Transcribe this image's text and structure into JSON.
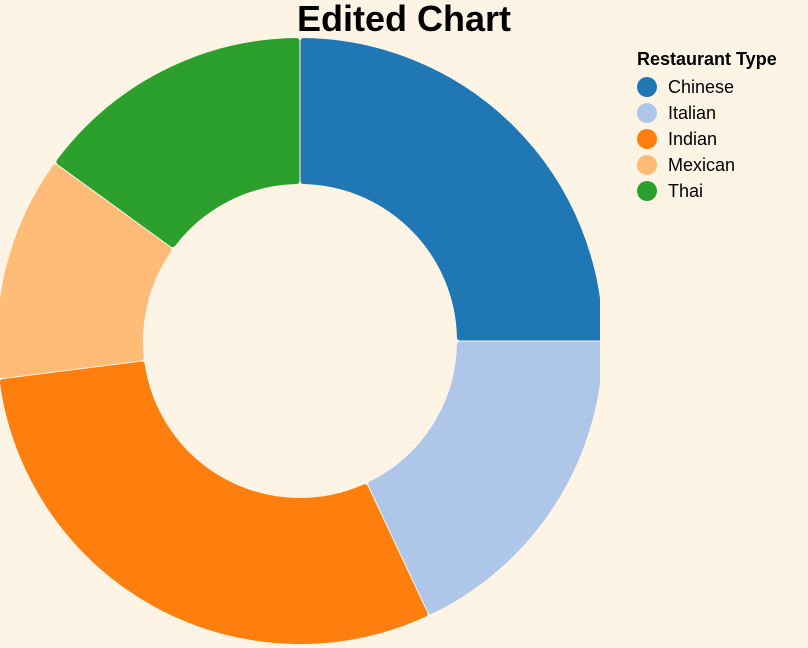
{
  "chart_data": {
    "type": "pie",
    "title": "Edited Chart",
    "legend_title": "Restaurant Type",
    "legend_position": "top-right",
    "donut": true,
    "categories": [
      "Chinese",
      "Italian",
      "Indian",
      "Mexican",
      "Thai"
    ],
    "values": [
      25,
      18,
      30,
      12,
      15
    ],
    "colors": [
      "#1f77b4",
      "#aec7e8",
      "#ff7f0e",
      "#ffbb78",
      "#2ca02c"
    ]
  }
}
